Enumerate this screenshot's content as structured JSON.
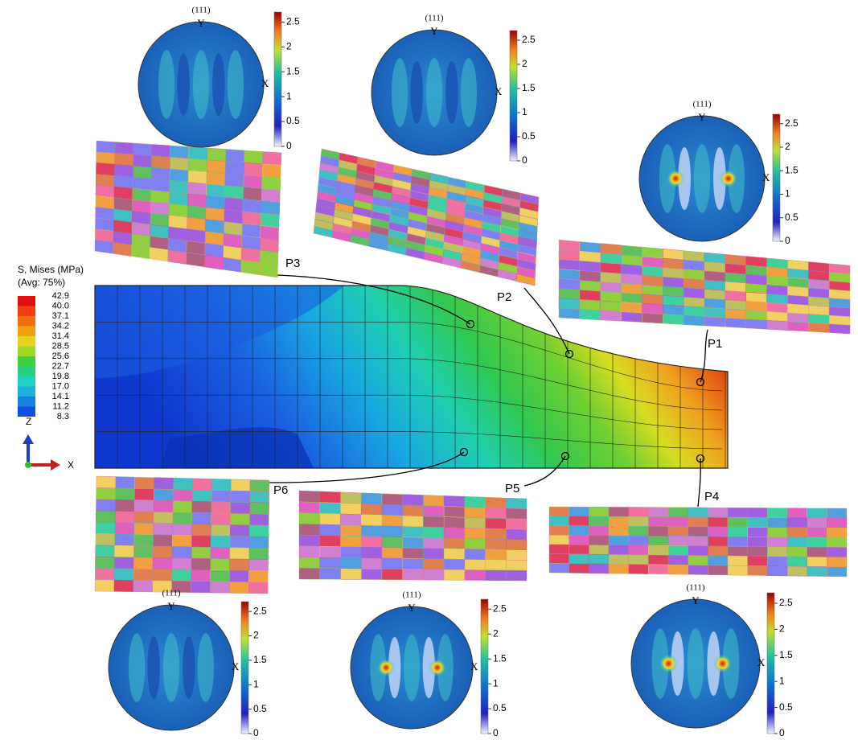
{
  "legend": {
    "title": "S, Mises (MPa)",
    "subtitle": "(Avg: 75%)",
    "levels": [
      "42.9",
      "40.0",
      "37.1",
      "34.2",
      "31.4",
      "28.5",
      "25.6",
      "22.7",
      "19.8",
      "17.0",
      "14.1",
      "11.2",
      "8.3"
    ]
  },
  "axes": {
    "z": "Z",
    "x": "X"
  },
  "points": [
    "P1",
    "P2",
    "P3",
    "P4",
    "P5",
    "P6"
  ],
  "colorbar_range": [
    0,
    2.7
  ],
  "pole_figures": [
    {
      "plane": "(111)",
      "y_label": "Y",
      "x_label": "X",
      "colorbar_ticks": [
        0,
        0.5,
        1,
        1.5,
        2,
        2.5
      ]
    },
    {
      "plane": "(111)",
      "y_label": "Y",
      "x_label": "X",
      "colorbar_ticks": [
        0,
        0.5,
        1,
        1.5,
        2,
        2.5
      ]
    },
    {
      "plane": "(111)",
      "y_label": "Y",
      "x_label": "X",
      "colorbar_ticks": [
        0,
        0.5,
        1,
        1.5,
        2,
        2.5
      ]
    },
    {
      "plane": "(111)",
      "y_label": "Y",
      "x_label": "X",
      "colorbar_ticks": [
        0,
        0.5,
        1,
        1.5,
        2,
        2.5
      ]
    },
    {
      "plane": "(111)",
      "y_label": "Y",
      "x_label": "X",
      "colorbar_ticks": [
        0,
        0.5,
        1,
        1.5,
        2,
        2.5
      ]
    },
    {
      "plane": "(111)",
      "y_label": "Y",
      "x_label": "X",
      "colorbar_ticks": [
        0,
        0.5,
        1,
        1.5,
        2,
        2.5
      ]
    }
  ]
}
